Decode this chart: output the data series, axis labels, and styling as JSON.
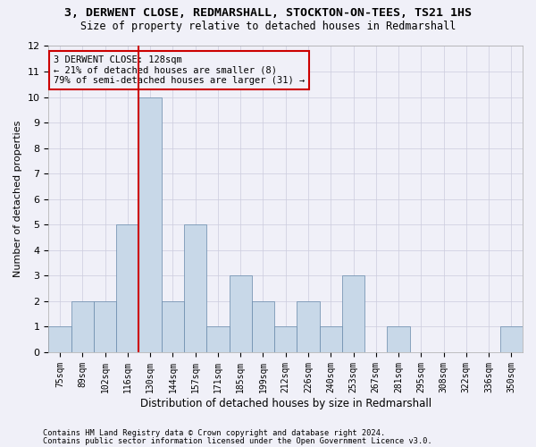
{
  "title_line1": "3, DERWENT CLOSE, REDMARSHALL, STOCKTON-ON-TEES, TS21 1HS",
  "title_line2": "Size of property relative to detached houses in Redmarshall",
  "xlabel": "Distribution of detached houses by size in Redmarshall",
  "ylabel": "Number of detached properties",
  "categories": [
    "75sqm",
    "89sqm",
    "102sqm",
    "116sqm",
    "130sqm",
    "144sqm",
    "157sqm",
    "171sqm",
    "185sqm",
    "199sqm",
    "212sqm",
    "226sqm",
    "240sqm",
    "253sqm",
    "267sqm",
    "281sqm",
    "295sqm",
    "308sqm",
    "322sqm",
    "336sqm",
    "350sqm"
  ],
  "values": [
    1,
    2,
    2,
    5,
    10,
    2,
    5,
    1,
    3,
    2,
    1,
    2,
    1,
    3,
    0,
    1,
    0,
    0,
    0,
    0,
    1
  ],
  "bar_color": "#c8d8e8",
  "bar_edge_color": "#6688aa",
  "subject_line_index": 4,
  "subject_line_color": "#cc0000",
  "annotation_text": "3 DERWENT CLOSE: 128sqm\n← 21% of detached houses are smaller (8)\n79% of semi-detached houses are larger (31) →",
  "annotation_box_color": "#cc0000",
  "ylim": [
    0,
    12
  ],
  "yticks": [
    0,
    1,
    2,
    3,
    4,
    5,
    6,
    7,
    8,
    9,
    10,
    11,
    12
  ],
  "footnote1": "Contains HM Land Registry data © Crown copyright and database right 2024.",
  "footnote2": "Contains public sector information licensed under the Open Government Licence v3.0.",
  "bg_color": "#f0f0f8",
  "grid_color": "#ccccdd"
}
